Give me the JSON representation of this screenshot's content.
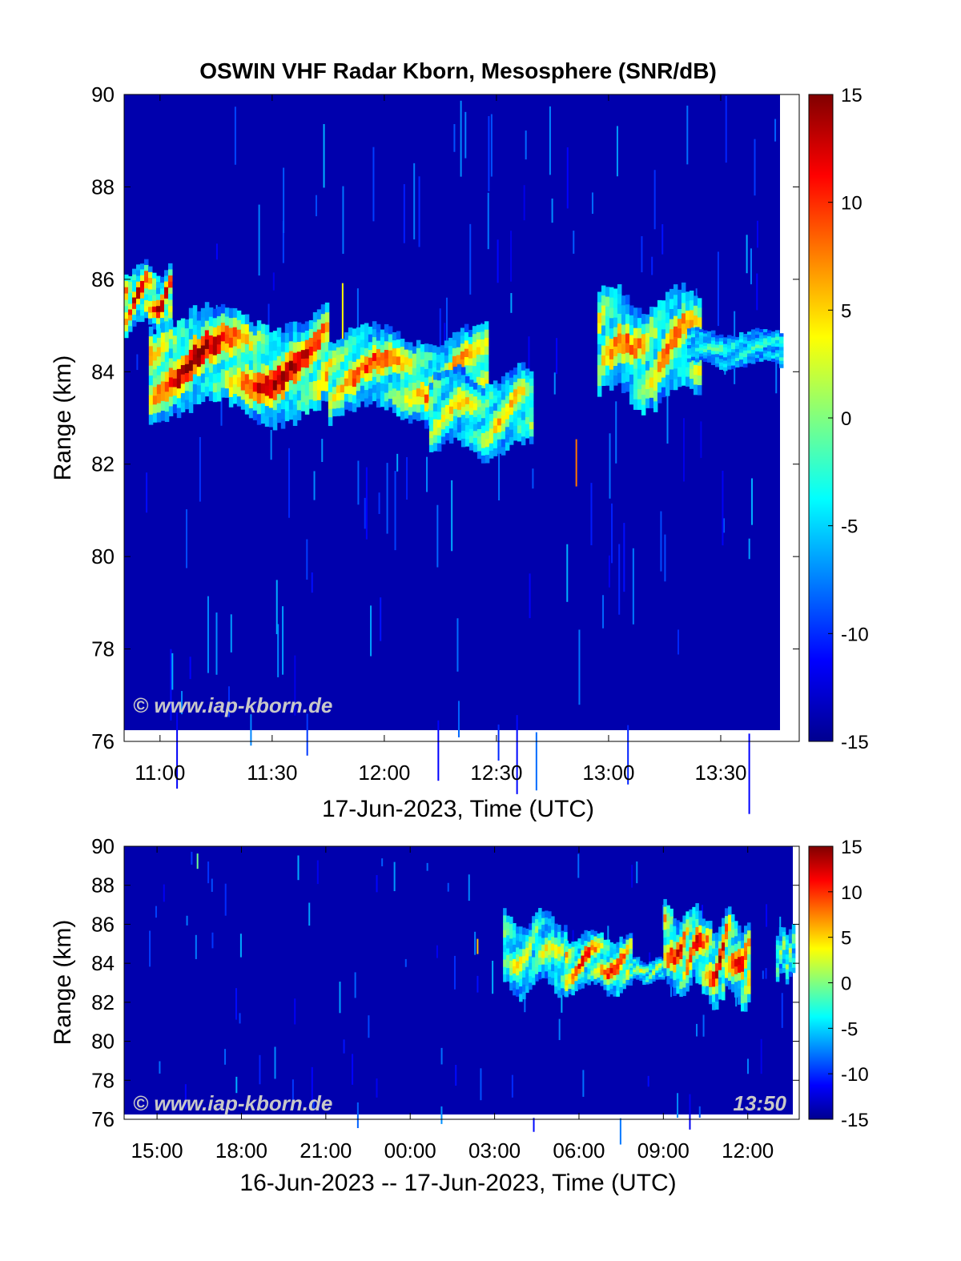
{
  "title": "OSWIN VHF Radar Kborn, Mesosphere (SNR/dB)",
  "watermark": "© www.iap-kborn.de",
  "timestamp": "13:50",
  "colormap": {
    "name": "jet",
    "stops": [
      "#00008f",
      "#0000ff",
      "#0080ff",
      "#00ffff",
      "#80ff80",
      "#ffff00",
      "#ff8000",
      "#ff0000",
      "#800000"
    ]
  },
  "chart_data": [
    {
      "type": "heatmap",
      "title": "OSWIN VHF Radar Kborn, Mesosphere (SNR/dB)",
      "xlabel": "17-Jun-2023, Time (UTC)",
      "ylabel": "Range (km)",
      "xticks": [
        "11:00",
        "11:30",
        "12:00",
        "12:30",
        "13:00",
        "13:30"
      ],
      "xtick_hours": [
        11.0,
        11.5,
        12.0,
        12.5,
        13.0,
        13.5
      ],
      "xlim_hours": [
        10.84,
        13.85
      ],
      "ylim": [
        76,
        90
      ],
      "yticks": [
        76,
        78,
        80,
        82,
        84,
        86,
        88,
        90
      ],
      "colorbar": {
        "ticks": [
          15,
          10,
          5,
          0,
          -5,
          -10,
          -15
        ],
        "clim": [
          -15,
          15
        ]
      },
      "background_snr": -14,
      "echo_layers": [
        {
          "t_start": 10.84,
          "t_end": 11.05,
          "range_top": 86.3,
          "range_bottom": 84.9,
          "peak_snr": 15
        },
        {
          "t_start": 10.95,
          "t_end": 11.75,
          "range_top": 85.3,
          "range_bottom": 83.0,
          "peak_snr": 15
        },
        {
          "t_start": 11.75,
          "t_end": 12.45,
          "range_top": 84.9,
          "range_bottom": 83.0,
          "peak_snr": 10
        },
        {
          "t_start": 12.2,
          "t_end": 12.65,
          "range_top": 84.0,
          "range_bottom": 82.2,
          "peak_snr": 6
        },
        {
          "t_start": 12.95,
          "t_end": 13.4,
          "range_top": 85.7,
          "range_bottom": 83.3,
          "peak_snr": 9
        },
        {
          "t_start": 13.35,
          "t_end": 13.85,
          "range_top": 84.9,
          "range_bottom": 84.1,
          "peak_snr": -2
        }
      ]
    },
    {
      "type": "heatmap",
      "xlabel": "16-Jun-2023 -- 17-Jun-2023, Time (UTC)",
      "ylabel": "Range (km)",
      "xticks": [
        "15:00",
        "18:00",
        "21:00",
        "00:00",
        "03:00",
        "06:00",
        "09:00",
        "12:00"
      ],
      "xtick_hours": [
        15,
        18,
        21,
        24,
        27,
        30,
        33,
        36
      ],
      "xlim_hours": [
        13.83,
        37.83
      ],
      "ylim": [
        76,
        90
      ],
      "yticks": [
        76,
        78,
        80,
        82,
        84,
        86,
        88,
        90
      ],
      "colorbar": {
        "ticks": [
          15,
          10,
          5,
          0,
          -5,
          -10,
          -15
        ],
        "clim": [
          -15,
          15
        ]
      },
      "background_snr": -14,
      "echo_layers": [
        {
          "t_start": 27.3,
          "t_end": 29.5,
          "range_top": 86.5,
          "range_bottom": 82.5,
          "peak_snr": 4
        },
        {
          "t_start": 29.5,
          "t_end": 31.8,
          "range_top": 85.6,
          "range_bottom": 82.5,
          "peak_snr": 12
        },
        {
          "t_start": 31.8,
          "t_end": 33.0,
          "range_top": 84.2,
          "range_bottom": 83.0,
          "peak_snr": 3
        },
        {
          "t_start": 33.0,
          "t_end": 34.5,
          "range_top": 86.8,
          "range_bottom": 82.5,
          "peak_snr": 13
        },
        {
          "t_start": 34.5,
          "t_end": 36.0,
          "range_top": 86.5,
          "range_bottom": 82.0,
          "peak_snr": 14
        },
        {
          "t_start": 37.0,
          "t_end": 37.83,
          "range_top": 85.8,
          "range_bottom": 83.2,
          "peak_snr": 2
        }
      ]
    }
  ]
}
